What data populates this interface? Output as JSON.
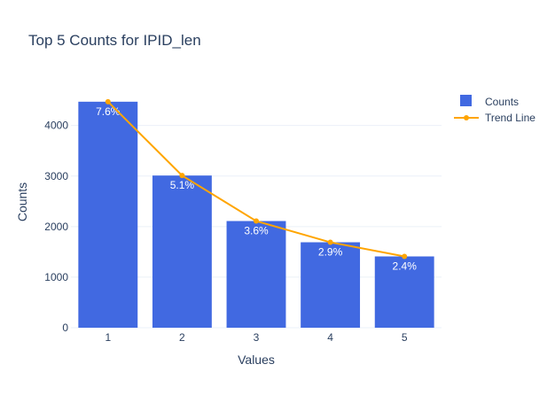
{
  "chart_data": {
    "type": "bar",
    "title": "Top 5 Counts for IPID_len",
    "xlabel": "Values",
    "ylabel": "Counts",
    "categories": [
      "1",
      "2",
      "3",
      "4",
      "5"
    ],
    "ylim": [
      0,
      4800
    ],
    "yticks": [
      0,
      1000,
      2000,
      3000,
      4000
    ],
    "grid": true,
    "legend_position": "top-right",
    "series": [
      {
        "name": "Counts",
        "type": "bar",
        "color": "#4169e1",
        "values": [
          4470,
          3010,
          2110,
          1690,
          1410
        ],
        "labels": [
          "7.6%",
          "5.1%",
          "3.6%",
          "2.9%",
          "2.4%"
        ]
      },
      {
        "name": "Trend Line",
        "type": "line",
        "color": "#ffa500",
        "values": [
          4470,
          3010,
          2110,
          1690,
          1410
        ]
      }
    ]
  }
}
